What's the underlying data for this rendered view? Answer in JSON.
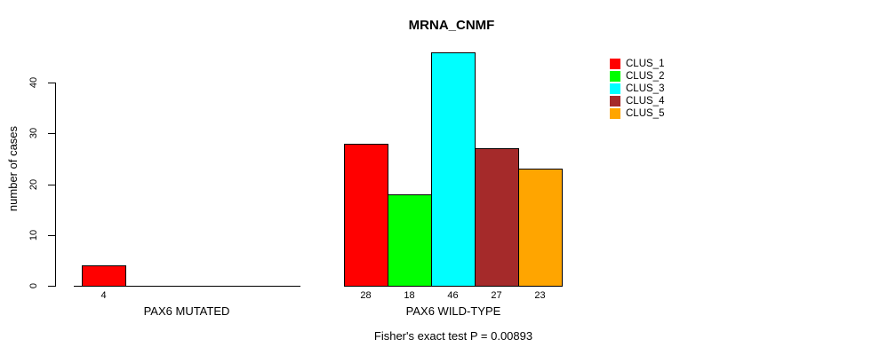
{
  "title": "MRNA_CNMF",
  "chart_data": {
    "type": "bar",
    "title": "MRNA_CNMF",
    "xlabel": "",
    "ylabel": "number of cases",
    "ylim": [
      0,
      46
    ],
    "yticks": [
      0,
      10,
      20,
      30,
      40
    ],
    "grid": false,
    "legend_position": "right",
    "bar_borders": true,
    "series": [
      {
        "name": "CLUS_1",
        "color": "#FF0000"
      },
      {
        "name": "CLUS_2",
        "color": "#00FF00"
      },
      {
        "name": "CLUS_3",
        "color": "#00FFFF"
      },
      {
        "name": "CLUS_4",
        "color": "#A52A2A"
      },
      {
        "name": "CLUS_5",
        "color": "#FFA500"
      }
    ],
    "groups": [
      {
        "label": "PAX6 MUTATED",
        "values": [
          4,
          0,
          0,
          0,
          0
        ]
      },
      {
        "label": "PAX6 WILD-TYPE",
        "values": [
          28,
          18,
          46,
          27,
          23
        ]
      }
    ],
    "annotation": "Fisher's exact test P = 0.00893"
  },
  "colors": {
    "axis": "#000000",
    "text": "#000000",
    "background": "#FFFFFF"
  }
}
